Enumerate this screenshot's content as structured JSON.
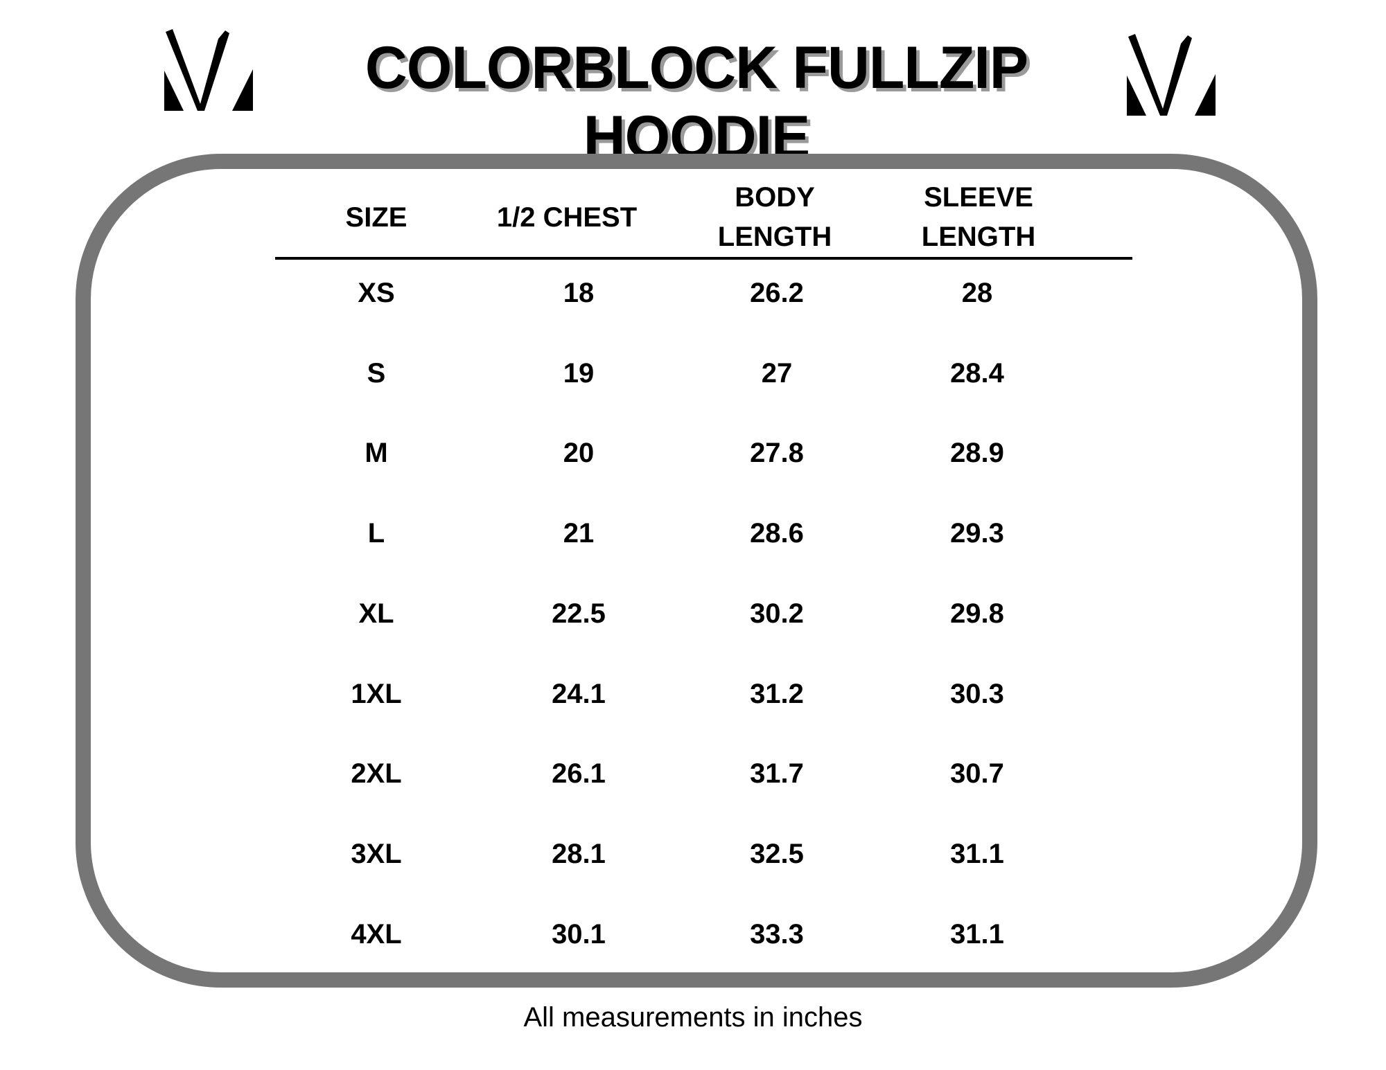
{
  "title": "COLORBLOCK FULLZIP HOODIE",
  "logo_icon": "brand-v-logo",
  "border_color": "#767676",
  "table": {
    "headers": [
      [
        "SIZE"
      ],
      [
        "1/2 CHEST"
      ],
      [
        "BODY",
        "LENGTH"
      ],
      [
        "SLEEVE",
        "LENGTH"
      ]
    ],
    "rows": [
      [
        "XS",
        "18",
        "26.2",
        "28"
      ],
      [
        "S",
        "19",
        "27",
        "28.4"
      ],
      [
        "M",
        "20",
        "27.8",
        "28.9"
      ],
      [
        "L",
        "21",
        "28.6",
        "29.3"
      ],
      [
        "XL",
        "22.5",
        "30.2",
        "29.8"
      ],
      [
        "1XL",
        "24.1",
        "31.2",
        "30.3"
      ],
      [
        "2XL",
        "26.1",
        "31.7",
        "30.7"
      ],
      [
        "3XL",
        "28.1",
        "32.5",
        "31.1"
      ],
      [
        "4XL",
        "30.1",
        "33.3",
        "31.1"
      ]
    ]
  },
  "footer": "All measurements in inches"
}
